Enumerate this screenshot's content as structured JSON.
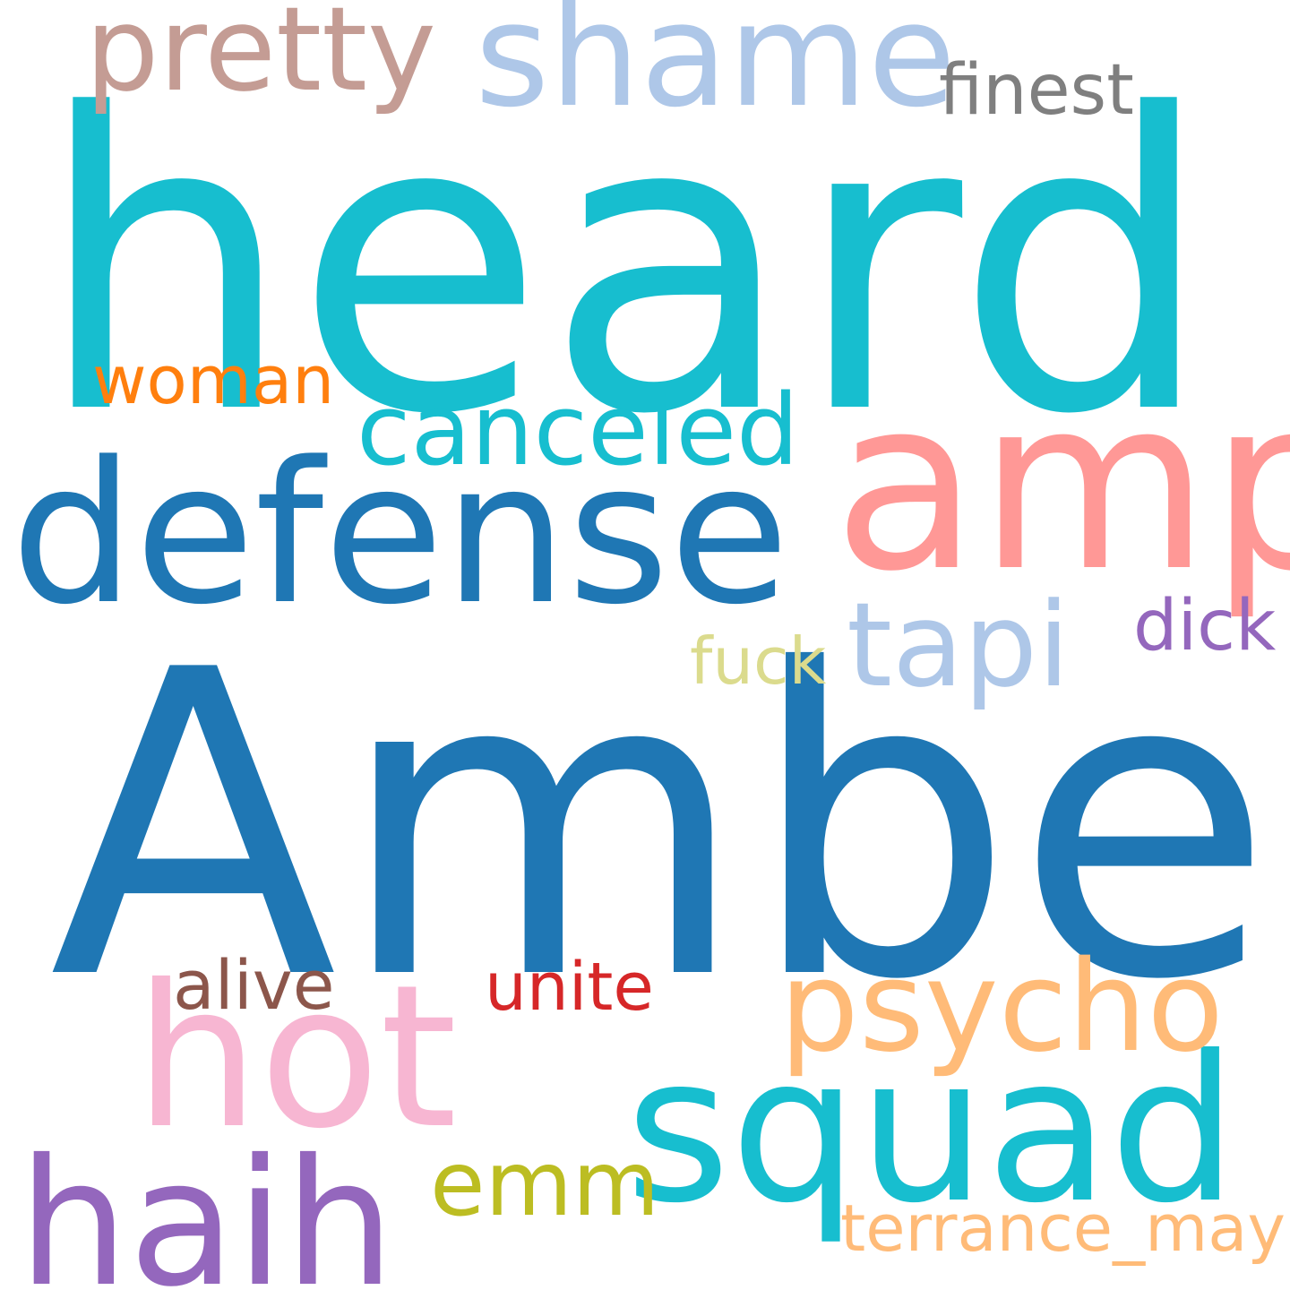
{
  "words": [
    {
      "id": "heard",
      "text": "heard",
      "color": "#17becf"
    },
    {
      "id": "amber",
      "text": "Amber",
      "color": "#1f77b4"
    },
    {
      "id": "amp",
      "text": "amp",
      "color": "#ff9896"
    },
    {
      "id": "defense",
      "text": "defense",
      "color": "#1f77b4"
    },
    {
      "id": "squad",
      "text": "squad",
      "color": "#17becf"
    },
    {
      "id": "hot",
      "text": "hot",
      "color": "#f7b6d2"
    },
    {
      "id": "haih",
      "text": "haih",
      "color": "#9467bd"
    },
    {
      "id": "shame",
      "text": "shame",
      "color": "#aec7e8"
    },
    {
      "id": "pretty",
      "text": "pretty",
      "color": "#c49c94"
    },
    {
      "id": "psycho",
      "text": "psycho",
      "color": "#ffbb78"
    },
    {
      "id": "canceled",
      "text": "canceled",
      "color": "#17becf"
    },
    {
      "id": "tapi",
      "text": "tapi",
      "color": "#aec7e8"
    },
    {
      "id": "emm",
      "text": "emm",
      "color": "#bcbd22"
    },
    {
      "id": "finest",
      "text": "finest",
      "color": "#7f7f7f"
    },
    {
      "id": "woman",
      "text": "woman",
      "color": "#ff7f0e"
    },
    {
      "id": "dick",
      "text": "dick",
      "color": "#9467bd"
    },
    {
      "id": "fuck",
      "text": "fuck",
      "color": "#dbdb8d"
    },
    {
      "id": "alive",
      "text": "alive",
      "color": "#8c564b"
    },
    {
      "id": "unite",
      "text": "unite",
      "color": "#d62728"
    },
    {
      "id": "terrance",
      "text": "terrance_may",
      "color": "#ffbb78"
    }
  ]
}
